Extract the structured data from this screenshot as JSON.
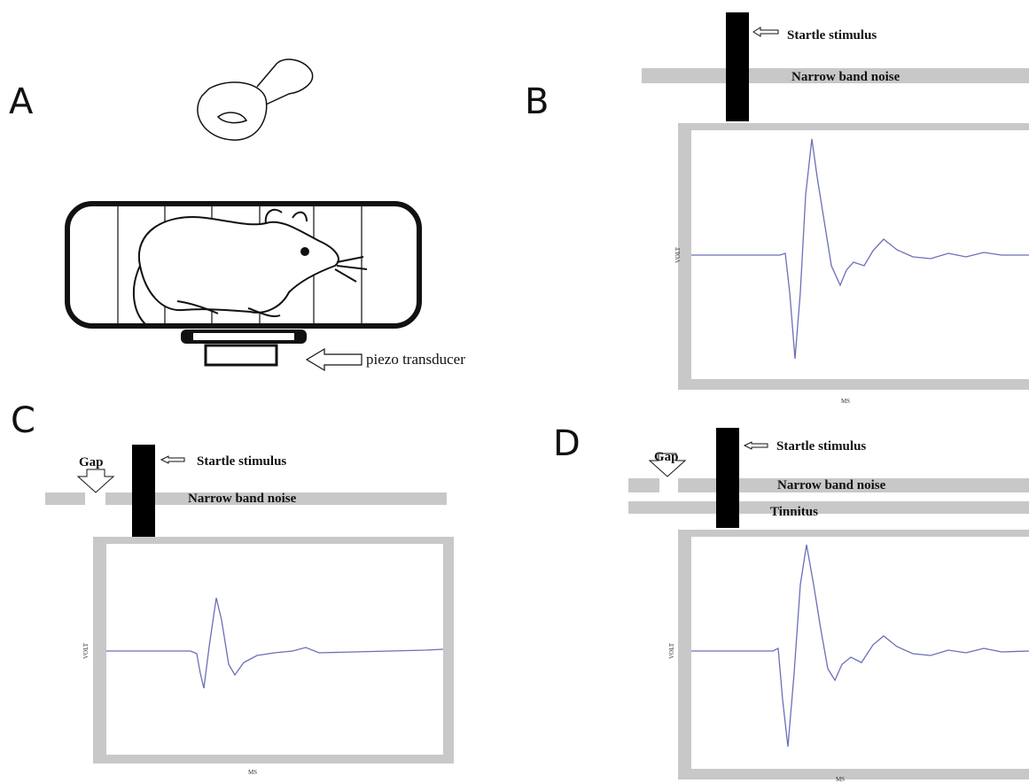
{
  "panels": [
    {
      "label": "A",
      "annotation": "piezo transducer"
    },
    {
      "label": "B",
      "stimulus": "Startle stimulus",
      "noise": "Narrow band noise",
      "y_axis": "VOLT",
      "x_axis": "MS"
    },
    {
      "label": "C",
      "gap": "Gap",
      "stimulus": "Startle stimulus",
      "noise": "Narrow band noise",
      "y_axis": "VOLT",
      "x_axis": "MS"
    },
    {
      "label": "D",
      "gap": "Gap",
      "stimulus": "Startle stimulus",
      "noise": "Narrow band noise",
      "tinnitus": "Tinnitus",
      "y_axis": "VOLT",
      "x_axis": "MS"
    }
  ]
}
